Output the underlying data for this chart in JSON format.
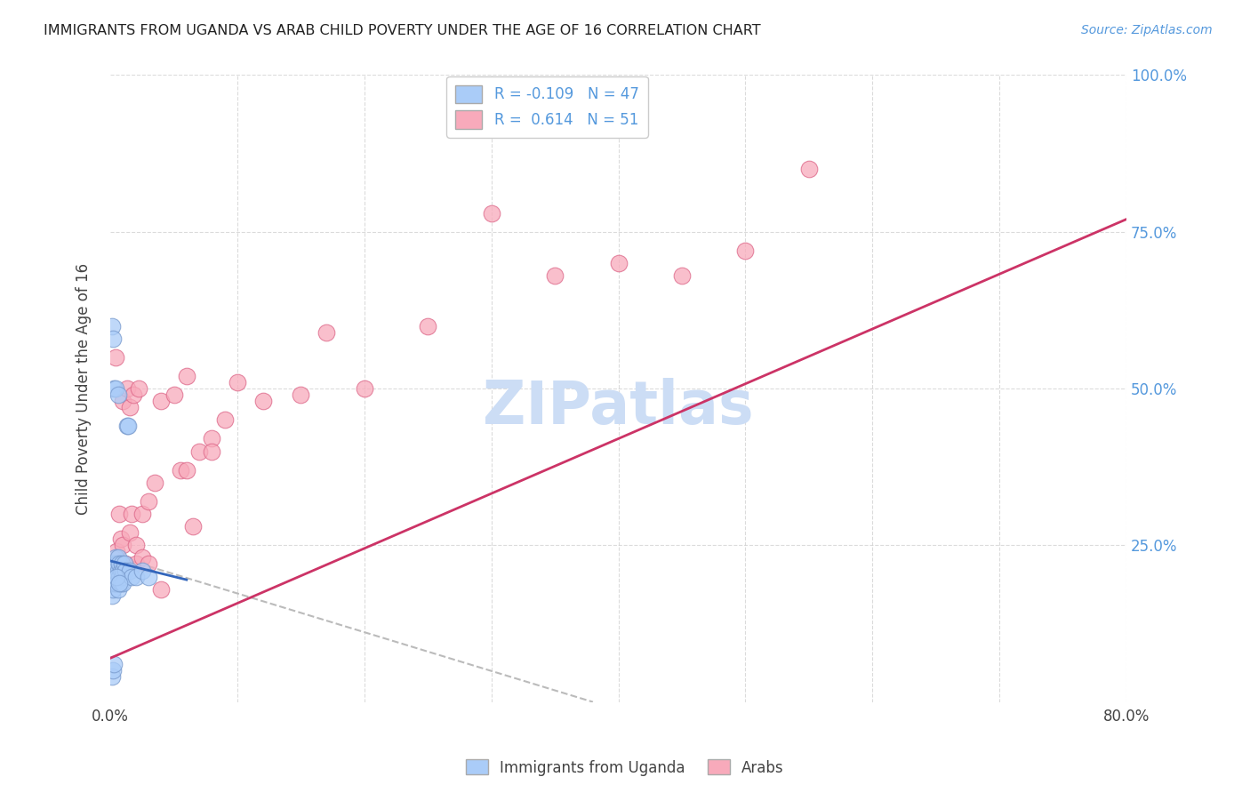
{
  "title": "IMMIGRANTS FROM UGANDA VS ARAB CHILD POVERTY UNDER THE AGE OF 16 CORRELATION CHART",
  "source": "Source: ZipAtlas.com",
  "ylabel": "Child Poverty Under the Age of 16",
  "legend_label1": "Immigrants from Uganda",
  "legend_label2": "Arabs",
  "R1": -0.109,
  "N1": 47,
  "R2": 0.614,
  "N2": 51,
  "color1": "#aaccf8",
  "color2": "#f8aabb",
  "color1_edge": "#7799cc",
  "color2_edge": "#dd6688",
  "trendline1_color": "#3366bb",
  "trendline2_color": "#cc3366",
  "dash_color": "#bbbbbb",
  "watermark_color": "#ccddf5",
  "bg_color": "#ffffff",
  "grid_color": "#cccccc",
  "title_color": "#222222",
  "axis_label_color": "#5599dd",
  "xlim": [
    0.0,
    0.8
  ],
  "ylim": [
    0.0,
    1.0
  ],
  "blue_points_x": [
    0.001,
    0.001,
    0.001,
    0.002,
    0.002,
    0.002,
    0.002,
    0.003,
    0.003,
    0.003,
    0.003,
    0.004,
    0.004,
    0.004,
    0.005,
    0.005,
    0.005,
    0.006,
    0.006,
    0.006,
    0.007,
    0.007,
    0.008,
    0.008,
    0.009,
    0.009,
    0.01,
    0.01,
    0.011,
    0.012,
    0.013,
    0.014,
    0.015,
    0.017,
    0.02,
    0.025,
    0.03,
    0.001,
    0.002,
    0.003,
    0.004,
    0.005,
    0.006,
    0.007,
    0.001,
    0.002,
    0.003
  ],
  "blue_points_y": [
    0.21,
    0.19,
    0.17,
    0.22,
    0.21,
    0.2,
    0.18,
    0.22,
    0.21,
    0.2,
    0.19,
    0.23,
    0.21,
    0.19,
    0.22,
    0.2,
    0.19,
    0.23,
    0.21,
    0.18,
    0.22,
    0.2,
    0.21,
    0.19,
    0.22,
    0.2,
    0.21,
    0.19,
    0.22,
    0.21,
    0.44,
    0.44,
    0.21,
    0.2,
    0.2,
    0.21,
    0.2,
    0.6,
    0.58,
    0.5,
    0.5,
    0.2,
    0.49,
    0.19,
    0.04,
    0.05,
    0.06
  ],
  "pink_points_x": [
    0.001,
    0.002,
    0.003,
    0.004,
    0.005,
    0.006,
    0.007,
    0.008,
    0.009,
    0.01,
    0.012,
    0.013,
    0.015,
    0.017,
    0.018,
    0.02,
    0.022,
    0.025,
    0.03,
    0.035,
    0.04,
    0.05,
    0.055,
    0.06,
    0.065,
    0.07,
    0.08,
    0.09,
    0.1,
    0.12,
    0.15,
    0.17,
    0.2,
    0.25,
    0.3,
    0.35,
    0.4,
    0.45,
    0.5,
    0.55,
    0.003,
    0.005,
    0.008,
    0.01,
    0.015,
    0.02,
    0.025,
    0.03,
    0.04,
    0.06,
    0.08
  ],
  "pink_points_y": [
    0.21,
    0.22,
    0.2,
    0.55,
    0.21,
    0.22,
    0.3,
    0.2,
    0.22,
    0.48,
    0.22,
    0.5,
    0.47,
    0.3,
    0.49,
    0.22,
    0.5,
    0.3,
    0.32,
    0.35,
    0.48,
    0.49,
    0.37,
    0.52,
    0.28,
    0.4,
    0.42,
    0.45,
    0.51,
    0.48,
    0.49,
    0.59,
    0.5,
    0.6,
    0.78,
    0.68,
    0.7,
    0.68,
    0.72,
    0.85,
    0.22,
    0.24,
    0.26,
    0.25,
    0.27,
    0.25,
    0.23,
    0.22,
    0.18,
    0.37,
    0.4
  ],
  "trendline_pink_x0": 0.0,
  "trendline_pink_y0": 0.07,
  "trendline_pink_x1": 0.8,
  "trendline_pink_y1": 0.77,
  "trendline_blue_x0": 0.0,
  "trendline_blue_y0": 0.225,
  "trendline_blue_x1": 0.06,
  "trendline_blue_y1": 0.195,
  "trendline_dash_x0": 0.0,
  "trendline_dash_y0": 0.235,
  "trendline_dash_x1": 0.38,
  "trendline_dash_y1": 0.0
}
